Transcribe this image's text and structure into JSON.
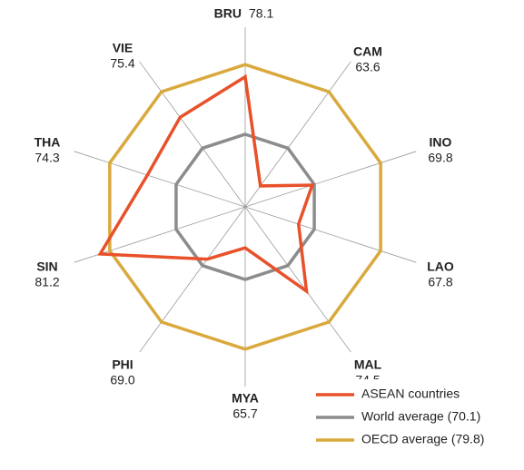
{
  "chart_data": {
    "type": "radar",
    "categories": [
      "BRU",
      "CAM",
      "INO",
      "LAO",
      "MAL",
      "MYA",
      "PHI",
      "SIN",
      "THA",
      "VIE"
    ],
    "ylim": [
      60,
      85
    ],
    "series": [
      {
        "name": "ASEAN countries",
        "color": "#e8512a",
        "values": [
          78.1,
          63.6,
          69.8,
          67.8,
          74.5,
          65.7,
          69.0,
          81.2,
          74.3,
          75.4
        ],
        "value_labels": [
          "78.1",
          "63.6",
          "69.8",
          "67.8",
          "74.5",
          "65.7",
          "69.0",
          "81.2",
          "74.3",
          "75.4"
        ]
      },
      {
        "name": "World average (70.1)",
        "color": "#8c8c8c",
        "values": [
          70.1,
          70.1,
          70.1,
          70.1,
          70.1,
          70.1,
          70.1,
          70.1,
          70.1,
          70.1
        ]
      },
      {
        "name": "OECD average (79.8)",
        "color": "#d9a93d",
        "values": [
          79.8,
          79.8,
          79.8,
          79.8,
          79.8,
          79.8,
          79.8,
          79.8,
          79.8,
          79.8
        ]
      }
    ]
  }
}
